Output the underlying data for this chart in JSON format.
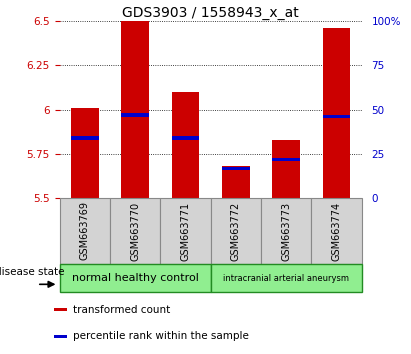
{
  "title": "GDS3903 / 1558943_x_at",
  "samples": [
    "GSM663769",
    "GSM663770",
    "GSM663771",
    "GSM663772",
    "GSM663773",
    "GSM663774"
  ],
  "bar_tops": [
    6.01,
    6.5,
    6.1,
    5.68,
    5.83,
    6.46
  ],
  "bar_bottom": 5.5,
  "percentile_values": [
    5.84,
    5.97,
    5.84,
    5.67,
    5.72,
    5.96
  ],
  "ylim": [
    5.5,
    6.5
  ],
  "yticks": [
    5.5,
    5.75,
    6.0,
    6.25,
    6.5
  ],
  "ytick_labels": [
    "5.5",
    "5.75",
    "6",
    "6.25",
    "6.5"
  ],
  "right_yticks": [
    0,
    25,
    50,
    75,
    100
  ],
  "right_ytick_labels": [
    "0",
    "25",
    "50",
    "75",
    "100%"
  ],
  "bar_color": "#cc0000",
  "percentile_color": "#0000cc",
  "group_labels": [
    "normal healthy control",
    "intracranial arterial aneurysm"
  ],
  "group_ranges": [
    [
      0,
      2
    ],
    [
      3,
      5
    ]
  ],
  "group_color": "#90ee90",
  "group_edge_color": "#228B22",
  "disease_state_label": "disease state",
  "legend_items": [
    {
      "color": "#cc0000",
      "label": "transformed count"
    },
    {
      "color": "#0000cc",
      "label": "percentile rank within the sample"
    }
  ],
  "tick_label_color_left": "#cc0000",
  "tick_label_color_right": "#0000cc",
  "title_fontsize": 10,
  "axis_fontsize": 7.5,
  "bar_width": 0.55
}
